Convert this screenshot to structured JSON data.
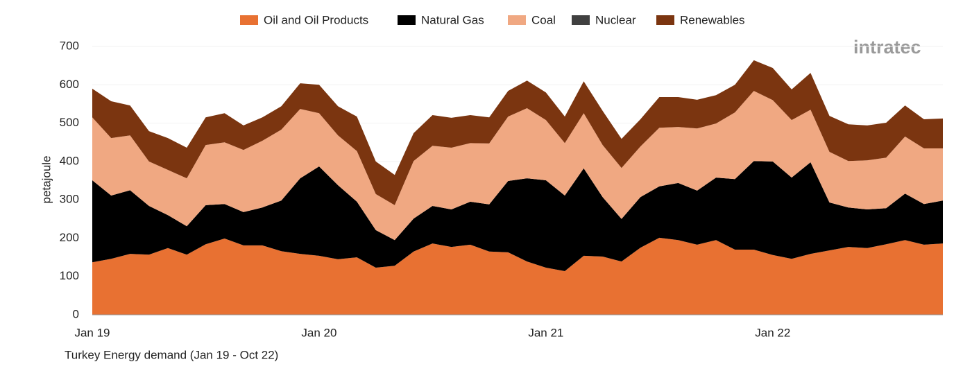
{
  "chart_data": {
    "type": "stacked-area",
    "title": "Turkey Energy demand (Jan 19 - Oct 22)",
    "y_label": "petajoule",
    "watermark": "intratec",
    "categories": [
      "Jan 19",
      null,
      null,
      null,
      null,
      null,
      null,
      null,
      null,
      null,
      null,
      null,
      "Jan 20",
      null,
      null,
      null,
      null,
      null,
      null,
      null,
      null,
      null,
      null,
      null,
      "Jan 21",
      null,
      null,
      null,
      null,
      null,
      null,
      null,
      null,
      null,
      null,
      null,
      "Jan 22",
      null,
      null,
      null,
      null,
      null,
      null,
      null,
      null,
      null
    ],
    "series": [
      {
        "name": "Oil and Oil Products",
        "color": "#e87132",
        "values": [
          137,
          146,
          159,
          157,
          174,
          157,
          184,
          199,
          181,
          181,
          166,
          159,
          154,
          145,
          150,
          123,
          128,
          165,
          186,
          177,
          183,
          165,
          163,
          139,
          123,
          114,
          154,
          152,
          139,
          175,
          201,
          195,
          183,
          195,
          170,
          170,
          156,
          146,
          159,
          168,
          177,
          174,
          184,
          195,
          183,
          186
        ]
      },
      {
        "name": "Natural Gas",
        "color": "#000000",
        "values": [
          214,
          165,
          166,
          127,
          86,
          74,
          102,
          90,
          87,
          99,
          132,
          197,
          233,
          193,
          145,
          98,
          67,
          86,
          98,
          98,
          112,
          123,
          186,
          217,
          228,
          197,
          228,
          155,
          111,
          132,
          134,
          149,
          141,
          163,
          184,
          231,
          244,
          212,
          239,
          125,
          103,
          101,
          94,
          121,
          106,
          112
        ]
      },
      {
        "name": "Coal",
        "color": "#f0a882",
        "values": [
          164,
          150,
          143,
          116,
          118,
          125,
          157,
          161,
          162,
          174,
          185,
          181,
          139,
          130,
          132,
          94,
          91,
          150,
          157,
          161,
          153,
          159,
          168,
          183,
          157,
          137,
          144,
          136,
          133,
          132,
          153,
          146,
          162,
          141,
          174,
          183,
          160,
          150,
          137,
          132,
          121,
          128,
          132,
          149,
          145,
          136
        ]
      },
      {
        "name": "Nuclear",
        "color": "#404040",
        "values": [
          0,
          0,
          0,
          0,
          0,
          0,
          0,
          0,
          0,
          0,
          0,
          0,
          0,
          0,
          0,
          0,
          0,
          0,
          0,
          0,
          0,
          0,
          0,
          0,
          0,
          0,
          0,
          0,
          0,
          0,
          0,
          0,
          0,
          0,
          0,
          0,
          0,
          0,
          0,
          0,
          0,
          0,
          0,
          0,
          0,
          0
        ]
      },
      {
        "name": "Renewables",
        "color": "#7b3510",
        "values": [
          75,
          96,
          78,
          79,
          83,
          80,
          72,
          76,
          64,
          61,
          61,
          67,
          74,
          76,
          90,
          85,
          79,
          73,
          80,
          78,
          73,
          68,
          67,
          72,
          72,
          69,
          83,
          89,
          76,
          71,
          80,
          78,
          75,
          74,
          72,
          80,
          84,
          80,
          96,
          94,
          96,
          91,
          91,
          81,
          76,
          78
        ]
      }
    ],
    "ylim": [
      0,
      700
    ],
    "yticks": [
      0,
      100,
      200,
      300,
      400,
      500,
      600,
      700
    ],
    "grid": true
  }
}
